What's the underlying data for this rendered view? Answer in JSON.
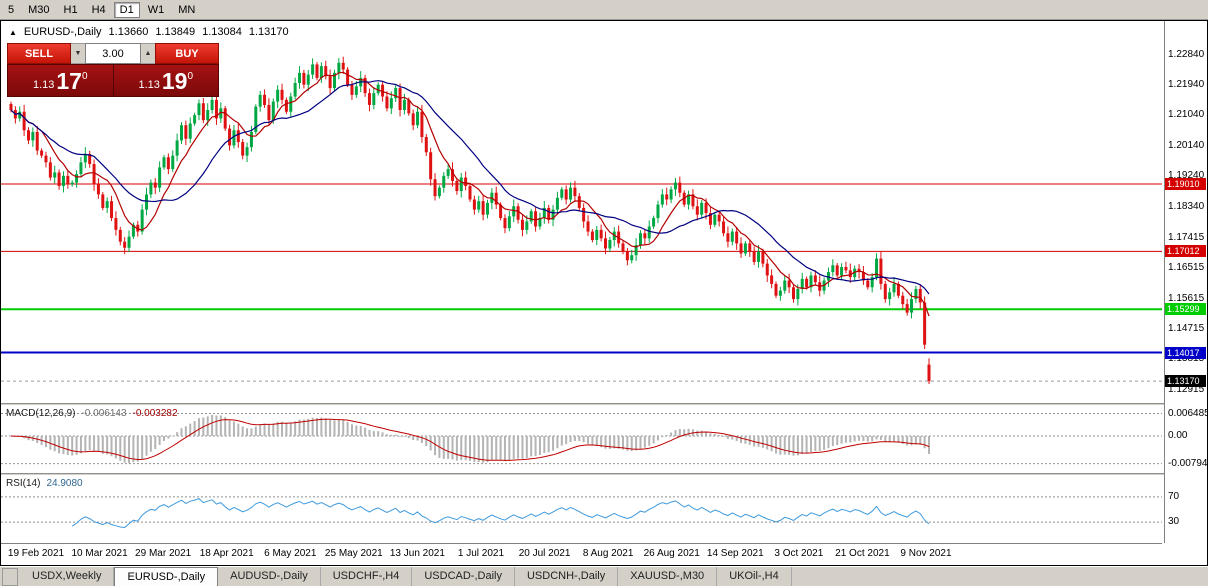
{
  "toolbar": {
    "timeframes": [
      {
        "label": "5",
        "active": false
      },
      {
        "label": "M30",
        "active": false
      },
      {
        "label": "H1",
        "active": false
      },
      {
        "label": "H4",
        "active": false
      },
      {
        "label": "D1",
        "active": true
      },
      {
        "label": "W1",
        "active": false
      },
      {
        "label": "MN",
        "active": false
      }
    ]
  },
  "icons": {
    "symbol_marker": "▲",
    "spinner_down": "▼",
    "spinner_up": "▲"
  },
  "chart_header": {
    "symbol": "EURUSD-,Daily",
    "open": "1.13660",
    "high": "1.13849",
    "low": "1.13084",
    "close": "1.13170"
  },
  "trade_widget": {
    "sell_label": "SELL",
    "buy_label": "BUY",
    "volume": "3.00",
    "sell_price_big": "1.13",
    "sell_price_pips": "17",
    "sell_price_pipette": "0",
    "buy_price_big": "1.13",
    "buy_price_pips": "19",
    "buy_price_pipette": "0"
  },
  "macd": {
    "title": "MACD(12,26,9)",
    "value1": "-0.006143",
    "value2": "-0.003282",
    "levels": [
      {
        "value": 0.006485,
        "label": "0.006485"
      },
      {
        "value": 0,
        "label": "0.00"
      },
      {
        "value": -0.007947,
        "label": "-0.007947"
      }
    ]
  },
  "rsi": {
    "title": "RSI(14)",
    "value": "24.9080",
    "levels": [
      {
        "value": 70,
        "label": "70"
      },
      {
        "value": 30,
        "label": "30"
      }
    ]
  },
  "tabs": [
    {
      "label": "USDX,Weekly",
      "active": false
    },
    {
      "label": "EURUSD-,Daily",
      "active": true
    },
    {
      "label": "AUDUSD-,Daily",
      "active": false
    },
    {
      "label": "USDCHF-,H4",
      "active": false
    },
    {
      "label": "USDCAD-,Daily",
      "active": false
    },
    {
      "label": "USDCNH-,Daily",
      "active": false
    },
    {
      "label": "XAUUSD-,M30",
      "active": false
    },
    {
      "label": "UKOil-,H4",
      "active": false
    }
  ],
  "chart_data": {
    "type": "candlestick",
    "symbol": "EURUSD-",
    "period": "Daily",
    "ohlc_last": {
      "open": 1.1366,
      "high": 1.13849,
      "low": 1.13084,
      "close": 1.1317
    },
    "current_price": {
      "value": 1.1317,
      "label": "1.13170"
    },
    "axis_range": {
      "top": 1.236,
      "bottom": 1.127
    },
    "y_tick_labels": [
      "1.22840",
      "1.21940",
      "1.21040",
      "1.20140",
      "1.19240",
      "1.18340",
      "1.17415",
      "1.16515",
      "1.15615",
      "1.14715",
      "1.13815",
      "1.12915"
    ],
    "x_tick_labels": [
      "19 Feb 2021",
      "10 Mar 2021",
      "29 Mar 2021",
      "18 Apr 2021",
      "6 May 2021",
      "25 May 2021",
      "13 Jun 2021",
      "1 Jul 2021",
      "20 Jul 2021",
      "8 Aug 2021",
      "26 Aug 2021",
      "14 Sep 2021",
      "3 Oct 2021",
      "21 Oct 2021",
      "9 Nov 2021"
    ],
    "hlines": [
      {
        "price": 1.1901,
        "label": "1.19010",
        "color": "#d40000",
        "width": 1
      },
      {
        "price": 1.17012,
        "label": "1.17012",
        "color": "#d40000",
        "width": 1
      },
      {
        "price": 1.15299,
        "label": "1.15299",
        "color": "#00cc00",
        "width": 2
      },
      {
        "price": 1.14017,
        "label": "1.14017",
        "color": "#0000c8",
        "width": 2
      }
    ],
    "colors": {
      "up": "#00a843",
      "down": "#de1212"
    },
    "moving_averages": [
      {
        "period": 8,
        "color": "#b40000"
      },
      {
        "period": 20,
        "color": "#000080"
      }
    ],
    "indicators": {
      "macd": {
        "params": [
          12,
          26,
          9
        ],
        "values": [
          -0.006143,
          -0.003282
        ]
      },
      "rsi": {
        "period": 14,
        "value": 24.908
      }
    },
    "closes": [
      1.212,
      1.2095,
      1.2115,
      1.206,
      1.203,
      1.2055,
      1.2,
      1.1985,
      1.1965,
      1.192,
      1.1935,
      1.1895,
      1.1925,
      1.19,
      1.1905,
      1.193,
      1.1965,
      1.199,
      1.196,
      1.19,
      1.187,
      1.183,
      1.185,
      1.18,
      1.1765,
      1.173,
      1.1712,
      1.1745,
      1.178,
      1.176,
      1.1825,
      1.187,
      1.1905,
      1.189,
      1.195,
      1.198,
      1.1945,
      1.1985,
      1.203,
      1.2075,
      1.2035,
      1.208,
      1.2105,
      1.214,
      1.209,
      1.212,
      1.215,
      1.2095,
      1.2125,
      1.2065,
      1.2015,
      1.206,
      1.2025,
      1.1985,
      1.201,
      1.2055,
      1.213,
      1.2165,
      1.2135,
      1.209,
      1.2145,
      1.218,
      1.215,
      1.2115,
      1.216,
      1.22,
      1.223,
      1.2195,
      1.2225,
      1.2255,
      1.2215,
      1.225,
      1.222,
      1.2185,
      1.223,
      1.226,
      1.224,
      1.2195,
      1.2165,
      1.219,
      1.2215,
      1.217,
      1.2135,
      1.217,
      1.2195,
      1.216,
      1.2125,
      1.2155,
      1.2185,
      1.212,
      1.215,
      1.211,
      1.2075,
      1.2115,
      1.204,
      1.1995,
      1.1915,
      1.1865,
      1.189,
      1.1925,
      1.1945,
      1.191,
      1.188,
      1.192,
      1.1895,
      1.1855,
      1.1825,
      1.185,
      1.181,
      1.1845,
      1.1875,
      1.184,
      1.18,
      1.177,
      1.1805,
      1.1835,
      1.1795,
      1.1765,
      1.179,
      1.182,
      1.1775,
      1.18,
      1.183,
      1.1795,
      1.1825,
      1.186,
      1.1885,
      1.1855,
      1.189,
      1.1865,
      1.183,
      1.179,
      1.176,
      1.1735,
      1.1765,
      1.174,
      1.171,
      1.1735,
      1.176,
      1.1725,
      1.17,
      1.1675,
      1.169,
      1.172,
      1.1755,
      1.174,
      1.1775,
      1.18,
      1.184,
      1.187,
      1.1855,
      1.1885,
      1.1905,
      1.1875,
      1.184,
      1.187,
      1.1835,
      1.181,
      1.1845,
      1.1815,
      1.178,
      1.181,
      1.179,
      1.1755,
      1.173,
      1.176,
      1.1725,
      1.1695,
      1.1725,
      1.17,
      1.167,
      1.17,
      1.1665,
      1.163,
      1.1605,
      1.157,
      1.1585,
      1.1615,
      1.1595,
      1.156,
      1.159,
      1.162,
      1.1595,
      1.163,
      1.161,
      1.1585,
      1.1615,
      1.164,
      1.166,
      1.163,
      1.1655,
      1.1645,
      1.1625,
      1.165,
      1.164,
      1.1615,
      1.1595,
      1.1625,
      1.168,
      1.1605,
      1.156,
      1.158,
      1.1605,
      1.157,
      1.1545,
      1.152,
      1.156,
      1.159,
      1.155,
      1.1425,
      1.1317
    ]
  }
}
